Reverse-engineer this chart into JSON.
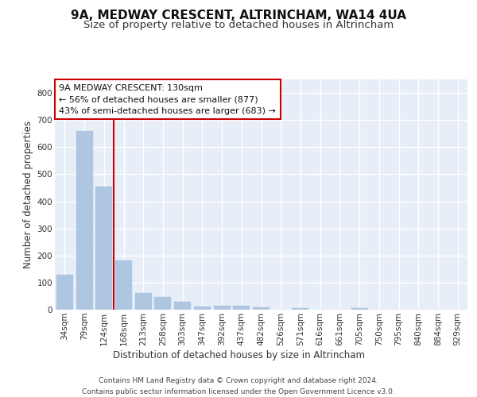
{
  "title": "9A, MEDWAY CRESCENT, ALTRINCHAM, WA14 4UA",
  "subtitle": "Size of property relative to detached houses in Altrincham",
  "xlabel": "Distribution of detached houses by size in Altrincham",
  "ylabel": "Number of detached properties",
  "categories": [
    "34sqm",
    "79sqm",
    "124sqm",
    "168sqm",
    "213sqm",
    "258sqm",
    "303sqm",
    "347sqm",
    "392sqm",
    "437sqm",
    "482sqm",
    "526sqm",
    "571sqm",
    "616sqm",
    "661sqm",
    "705sqm",
    "750sqm",
    "795sqm",
    "840sqm",
    "884sqm",
    "929sqm"
  ],
  "values": [
    128,
    660,
    453,
    183,
    62,
    47,
    29,
    12,
    15,
    14,
    8,
    0,
    7,
    0,
    0,
    7,
    0,
    0,
    0,
    0,
    0
  ],
  "bar_color": "#aec6e0",
  "bar_edgecolor": "#aec6e0",
  "vline_color": "#cc0000",
  "annotation_text": "9A MEDWAY CRESCENT: 130sqm\n← 56% of detached houses are smaller (877)\n43% of semi-detached houses are larger (683) →",
  "annotation_box_color": "#ffffff",
  "annotation_box_edgecolor": "#cc0000",
  "ylim": [
    0,
    850
  ],
  "yticks": [
    0,
    100,
    200,
    300,
    400,
    500,
    600,
    700,
    800
  ],
  "footer": "Contains HM Land Registry data © Crown copyright and database right 2024.\nContains public sector information licensed under the Open Government Licence v3.0.",
  "background_color": "#e8eef8",
  "grid_color": "#ffffff",
  "title_fontsize": 11,
  "subtitle_fontsize": 9.5,
  "axis_label_fontsize": 8.5,
  "tick_fontsize": 7.5,
  "footer_fontsize": 6.5,
  "annotation_fontsize": 8
}
